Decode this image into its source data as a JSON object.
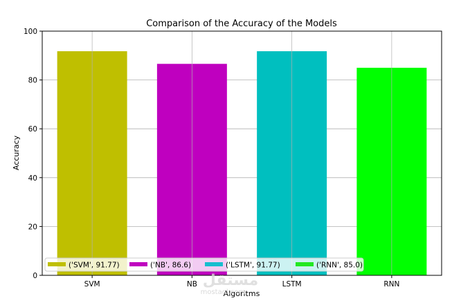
{
  "chart_data": {
    "type": "bar",
    "title": "Comparison of the Accuracy of the Models",
    "xlabel": "Algoritms",
    "ylabel": "Accuracy",
    "categories": [
      "SVM",
      "NB",
      "LSTM",
      "RNN"
    ],
    "values": [
      91.77,
      86.6,
      91.77,
      85.0
    ],
    "colors": [
      "#bfbf00",
      "#bf00bf",
      "#00bfbf",
      "#00ff00"
    ],
    "legend_colors": [
      "#bfbf00",
      "#bf00bf",
      "#17becf",
      "#22e822"
    ],
    "ylim": [
      0,
      100
    ],
    "yticks": [
      0,
      20,
      40,
      60,
      80,
      100
    ],
    "grid": true,
    "legend_position": "lower-left",
    "legend": [
      "('SVM', 91.77)",
      "('NB', 86.6)",
      "('LSTM', 91.77)",
      "('RNN', 85.0)"
    ]
  },
  "watermark": {
    "main": "مستقل",
    "sub": "mostaql.com"
  }
}
